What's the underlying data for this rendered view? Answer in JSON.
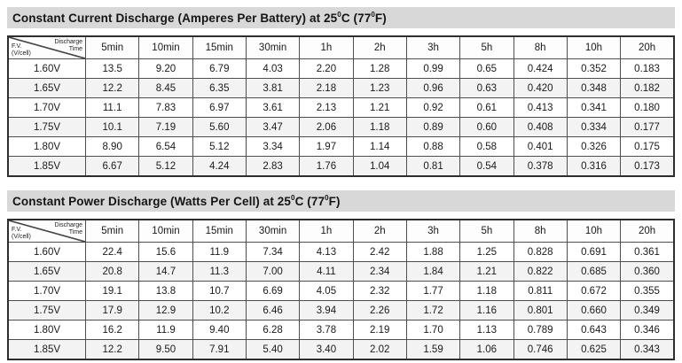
{
  "colors": {
    "title_bar_bg": "#d8d8d8",
    "row_alt_bg": "#f3f3f3",
    "table_border": "#2e2e2e",
    "cell_border": "#4f4f4f",
    "text": "#1a1a1a"
  },
  "tables": [
    {
      "title": {
        "pre": "Constant Current Discharge (Amperes Per Battery) at 25",
        "sup1": "0",
        "mid": "C (77",
        "sup2": "0",
        "post": "F)"
      },
      "corner": {
        "top_line1": "Discharge",
        "top_line2": "Time",
        "bottom_line1": "F.V.",
        "bottom_line2": "(V/cell)"
      },
      "columns": [
        "5min",
        "10min",
        "15min",
        "30min",
        "1h",
        "2h",
        "3h",
        "5h",
        "8h",
        "10h",
        "20h"
      ],
      "rows": [
        {
          "label": "1.60V",
          "values": [
            "13.5",
            "9.20",
            "6.79",
            "4.03",
            "2.20",
            "1.28",
            "0.99",
            "0.65",
            "0.424",
            "0.352",
            "0.183"
          ]
        },
        {
          "label": "1.65V",
          "values": [
            "12.2",
            "8.45",
            "6.35",
            "3.81",
            "2.18",
            "1.23",
            "0.96",
            "0.63",
            "0.420",
            "0.348",
            "0.182"
          ]
        },
        {
          "label": "1.70V",
          "values": [
            "11.1",
            "7.83",
            "6.97",
            "3.61",
            "2.13",
            "1.21",
            "0.92",
            "0.61",
            "0.413",
            "0.341",
            "0.180"
          ]
        },
        {
          "label": "1.75V",
          "values": [
            "10.1",
            "7.19",
            "5.60",
            "3.47",
            "2.06",
            "1.18",
            "0.89",
            "0.60",
            "0.408",
            "0.334",
            "0.177"
          ]
        },
        {
          "label": "1.80V",
          "values": [
            "8.90",
            "6.54",
            "5.12",
            "3.34",
            "1.97",
            "1.14",
            "0.88",
            "0.58",
            "0.401",
            "0.326",
            "0.175"
          ]
        },
        {
          "label": "1.85V",
          "values": [
            "6.67",
            "5.12",
            "4.24",
            "2.83",
            "1.76",
            "1.04",
            "0.81",
            "0.54",
            "0.378",
            "0.316",
            "0.173"
          ]
        }
      ]
    },
    {
      "title": {
        "pre": "Constant Power Discharge (Watts Per Cell) at 25",
        "sup1": "0",
        "mid": "C (77",
        "sup2": "0",
        "post": "F)"
      },
      "corner": {
        "top_line1": "Discharge",
        "top_line2": "Time",
        "bottom_line1": "F.V.",
        "bottom_line2": "(V/cell)"
      },
      "columns": [
        "5min",
        "10min",
        "15min",
        "30min",
        "1h",
        "2h",
        "3h",
        "5h",
        "8h",
        "10h",
        "20h"
      ],
      "rows": [
        {
          "label": "1.60V",
          "values": [
            "22.4",
            "15.6",
            "11.9",
            "7.34",
            "4.13",
            "2.42",
            "1.88",
            "1.25",
            "0.828",
            "0.691",
            "0.361"
          ]
        },
        {
          "label": "1.65V",
          "values": [
            "20.8",
            "14.7",
            "11.3",
            "7.00",
            "4.11",
            "2.34",
            "1.84",
            "1.21",
            "0.822",
            "0.685",
            "0.360"
          ]
        },
        {
          "label": "1.70V",
          "values": [
            "19.1",
            "13.8",
            "10.7",
            "6.69",
            "4.05",
            "2.32",
            "1.77",
            "1.18",
            "0.811",
            "0.672",
            "0.355"
          ]
        },
        {
          "label": "1.75V",
          "values": [
            "17.9",
            "12.9",
            "10.2",
            "6.46",
            "3.94",
            "2.26",
            "1.72",
            "1.16",
            "0.801",
            "0.660",
            "0.349"
          ]
        },
        {
          "label": "1.80V",
          "values": [
            "16.2",
            "11.9",
            "9.40",
            "6.28",
            "3.78",
            "2.19",
            "1.70",
            "1.13",
            "0.789",
            "0.643",
            "0.346"
          ]
        },
        {
          "label": "1.85V",
          "values": [
            "12.2",
            "9.50",
            "7.91",
            "5.40",
            "3.40",
            "2.02",
            "1.59",
            "1.06",
            "0.746",
            "0.625",
            "0.343"
          ]
        }
      ]
    }
  ]
}
